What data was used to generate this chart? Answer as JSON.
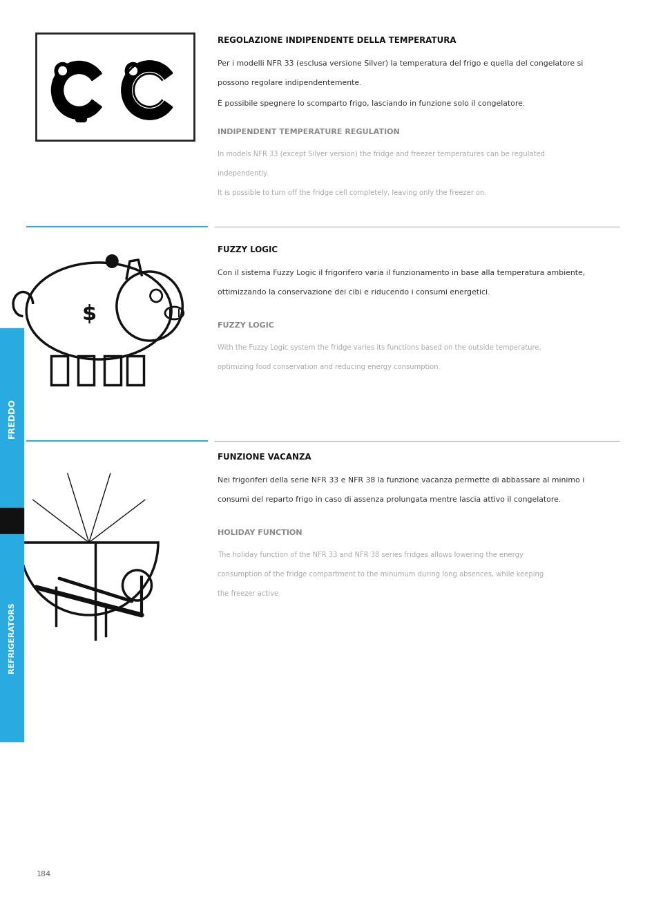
{
  "page_width": 9.6,
  "page_height": 12.98,
  "background_color": "#ffffff",
  "sidebar_color": "#29abe2",
  "sidebar_black_color": "#111111",
  "divider_cyan_color": "#29abe2",
  "divider_gray_color": "#aaaaaa",
  "section1": {
    "title_it": "REGOLAZIONE INDIPENDENTE DELLA TEMPERATURA",
    "body_it_line1": "Per i modelli NFR 33 (esclusa versione Silver) la temperatura del frigo e quella del congelatore si",
    "body_it_line2": "possono regolare indipendentemente.",
    "body_it_line3": "È possibile spegnere lo scomparto frigo, lasciando in funzione solo il congelatore.",
    "title_en": "INDIPENDENT TEMPERATURE REGULATION",
    "body_en_line1": "In models NFR 33 (except Silver version) the fridge and freezer temperatures can be regulated",
    "body_en_line2": "independently.",
    "body_en_line3": "It is possible to turn off the fridge cell completely, leaving only the freezer on."
  },
  "section2": {
    "title_it": "FUZZY LOGIC",
    "body_it_line1": "Con il sistema Fuzzy Logic il frigorifero varia il funzionamento in base alla temperatura ambiente,",
    "body_it_line2": "ottimizzando la conservazione dei cibi e riducendo i consumi energetici.",
    "title_en": "FUZZY LOGIC",
    "body_en_line1": "With the Fuzzy Logic system the fridge varies its functions based on the outside temperature,",
    "body_en_line2": "optimizing food conservation and reducing energy consumption."
  },
  "section3": {
    "title_it": "FUNZIONE VACANZA",
    "body_it_line1": "Nei frigoriferi della serie NFR 33 e NFR 38 la funzione vacanza permette di abbassare al minimo i",
    "body_it_line2": "consumi del reparto frigo in caso di assenza prolungata mentre lascia attivo il congelatore.",
    "title_en": "HOLIDAY FUNCTION",
    "body_en_line1": "The holiday function of the NFR 33 and NFR 38 series fridges allows lowering the energy",
    "body_en_line2": "consumption of the fridge compartment to the minumum during long absences, while keeping",
    "body_en_line3": "the freezer active."
  },
  "page_number": "184",
  "freddo_text": "FREDDO",
  "refrigerators_text": "REFRIGERATORS"
}
